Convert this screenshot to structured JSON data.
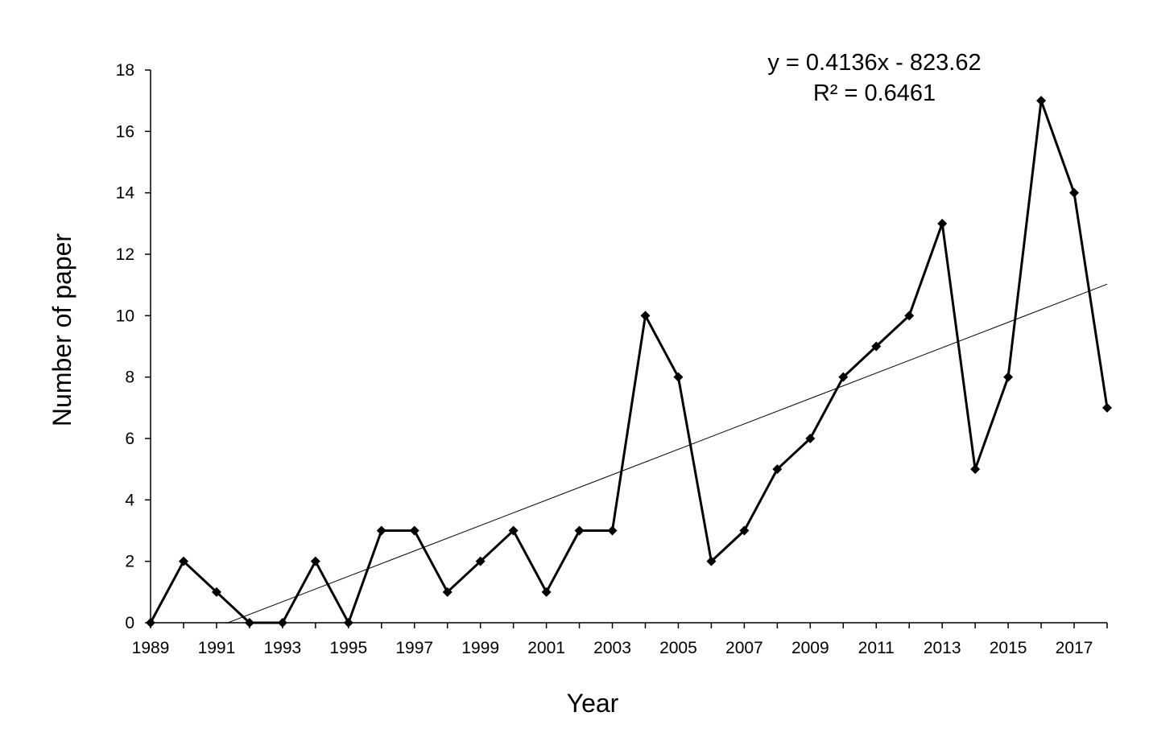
{
  "chart_data": {
    "type": "line",
    "title": "",
    "xlabel": "Year",
    "ylabel": "Number of paper",
    "xlim": [
      1989,
      2018
    ],
    "ylim": [
      0,
      18
    ],
    "y_ticks": [
      0,
      2,
      4,
      6,
      8,
      10,
      12,
      14,
      16,
      18
    ],
    "x_tick_labels": [
      "1989",
      "1991",
      "1993",
      "1995",
      "1997",
      "1999",
      "2001",
      "2003",
      "2005",
      "2007",
      "2009",
      "2011",
      "2013",
      "2015",
      "2017"
    ],
    "grid": false,
    "legend": "none",
    "series": [
      {
        "x": [
          1989,
          1990,
          1991,
          1992,
          1993,
          1994,
          1995,
          1996,
          1997,
          1998,
          1999,
          2000,
          2001,
          2002,
          2003,
          2004,
          2005,
          2006,
          2007,
          2008,
          2009,
          2010,
          2011,
          2012,
          2013,
          2014,
          2015,
          2016,
          2017,
          2018
        ],
        "values": [
          0,
          2,
          1,
          0,
          0,
          2,
          0,
          3,
          3,
          1,
          2,
          3,
          1,
          3,
          3,
          10,
          8,
          2,
          3,
          5,
          6,
          8,
          9,
          10,
          13,
          5,
          8,
          17,
          14,
          7
        ],
        "marker": "diamond",
        "color": "#000000"
      }
    ],
    "trendline": {
      "type": "linear",
      "slope": 0.4136,
      "intercept": -823.62,
      "x_range": [
        1991.3,
        2018
      ],
      "equation_label": "y = 0.4136x  - 823.62",
      "r2_label": "R² = 0.6461",
      "color": "#000000"
    }
  }
}
